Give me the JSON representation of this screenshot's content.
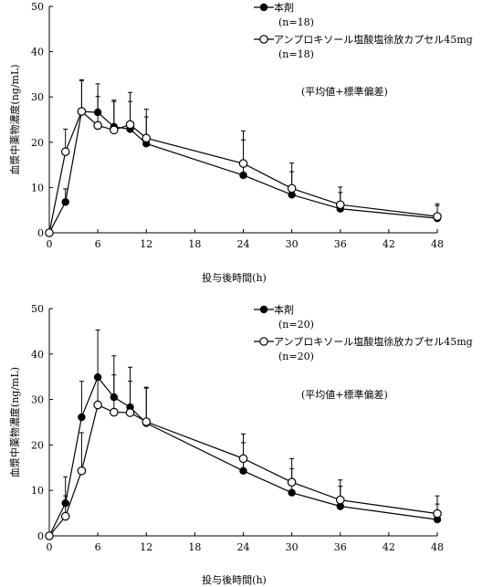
{
  "chart_data": [
    {
      "type": "line",
      "xlabel": "投与後時間(h)",
      "ylabel": "血漿中薬物濃度(ng/mL)",
      "xlim": [
        0,
        48
      ],
      "ylim": [
        0,
        50
      ],
      "xticks": [
        "0",
        "6",
        "12",
        "18",
        "24",
        "30",
        "36",
        "42",
        "48"
      ],
      "yticks": [
        "0",
        "10",
        "20",
        "30",
        "40",
        "50"
      ],
      "annotation": "(平均値+標準偏差)",
      "series": [
        {
          "name": "本剤",
          "n_label": "(n=18)",
          "marker": "filled-circle",
          "x": [
            0,
            2,
            4,
            6,
            8,
            10,
            12,
            24,
            30,
            36,
            48
          ],
          "y": [
            0,
            6.8,
            26.8,
            26.6,
            23.4,
            22.9,
            19.7,
            12.7,
            8.4,
            5.3,
            3.2
          ],
          "sd": [
            0,
            2.9,
            6.8,
            6.3,
            5.6,
            6.1,
            5.9,
            7.8,
            5.1,
            3.6,
            2.8
          ]
        },
        {
          "name": "アンプロキソール塩酸塩徐放カプセル45mg",
          "n_label": "(n=18)",
          "marker": "open-circle",
          "x": [
            0,
            2,
            4,
            6,
            8,
            10,
            12,
            24,
            30,
            36,
            48
          ],
          "y": [
            0,
            17.9,
            26.8,
            23.7,
            22.7,
            23.9,
            20.9,
            15.3,
            9.8,
            6.2,
            3.6
          ],
          "sd": [
            0,
            5.0,
            7.0,
            6.4,
            6.6,
            7.1,
            6.4,
            7.2,
            5.6,
            3.9,
            2.8
          ]
        }
      ]
    },
    {
      "type": "line",
      "xlabel": "投与後時間(h)",
      "ylabel": "血漿中薬物濃度(ng/mL)",
      "xlim": [
        0,
        48
      ],
      "ylim": [
        0,
        50
      ],
      "xticks": [
        "0",
        "6",
        "12",
        "18",
        "24",
        "30",
        "36",
        "42",
        "48"
      ],
      "yticks": [
        "0",
        "10",
        "20",
        "30",
        "40",
        "50"
      ],
      "annotation": "(平均値+標準偏差)",
      "series": [
        {
          "name": "本剤",
          "n_label": "(n=20)",
          "marker": "filled-circle",
          "x": [
            0,
            2,
            4,
            6,
            8,
            10,
            12,
            24,
            30,
            36,
            48
          ],
          "y": [
            0,
            7.2,
            26.1,
            34.9,
            30.5,
            28.3,
            24.8,
            14.3,
            9.5,
            6.5,
            3.6
          ],
          "sd": [
            0,
            5.8,
            7.9,
            10.4,
            9.1,
            8.8,
            7.9,
            6.2,
            5.3,
            4.4,
            3.4
          ]
        },
        {
          "name": "アンプロキソール塩酸塩徐放カプセル45mg",
          "n_label": "(n=20)",
          "marker": "open-circle",
          "x": [
            0,
            2,
            4,
            6,
            8,
            10,
            12,
            24,
            30,
            36,
            48
          ],
          "y": [
            0,
            4.3,
            14.3,
            28.8,
            27.2,
            27.1,
            25.1,
            17.0,
            11.8,
            7.9,
            4.9
          ],
          "sd": [
            0,
            4.5,
            8.4,
            6.7,
            8.2,
            6.9,
            7.4,
            5.4,
            5.2,
            4.4,
            3.9
          ]
        }
      ]
    }
  ]
}
